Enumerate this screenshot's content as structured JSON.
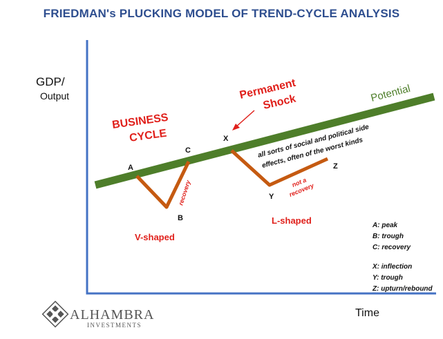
{
  "title": "FRIEDMAN's PLUCKING MODEL OF TREND-CYCLE ANALYSIS",
  "axes": {
    "y_label_line1": "GDP/",
    "y_label_line2": "Output",
    "x_label": "Time"
  },
  "potential_label": "Potential",
  "business_cycle": {
    "line1": "BUSINESS",
    "line2": "CYCLE"
  },
  "permanent_shock": {
    "line1": "Permanent",
    "line2": "Shock"
  },
  "points": {
    "A": "A",
    "B": "B",
    "C": "C",
    "X": "X",
    "Y": "Y",
    "Z": "Z"
  },
  "annotations": {
    "recovery": "recovery",
    "not_a": "not a",
    "not_recovery": "recovery",
    "side_effects_1": "all sorts of social and political side",
    "side_effects_2": "effects, often of the worst kinds"
  },
  "shapes": {
    "v": "V-shaped",
    "l": "L-shaped"
  },
  "legend": [
    "A: peak",
    "B: trough",
    "C: recovery",
    "X: inflection",
    "Y: trough",
    "Z: upturn/rebound"
  ],
  "logo": {
    "name": "ALHAMBRA",
    "sub": "INVESTMENTS"
  },
  "colors": {
    "title": "#2E4E8F",
    "axis": "#4472C4",
    "potential": "#4E7E2A",
    "path": "#C55A11",
    "red": "#E0201B"
  }
}
